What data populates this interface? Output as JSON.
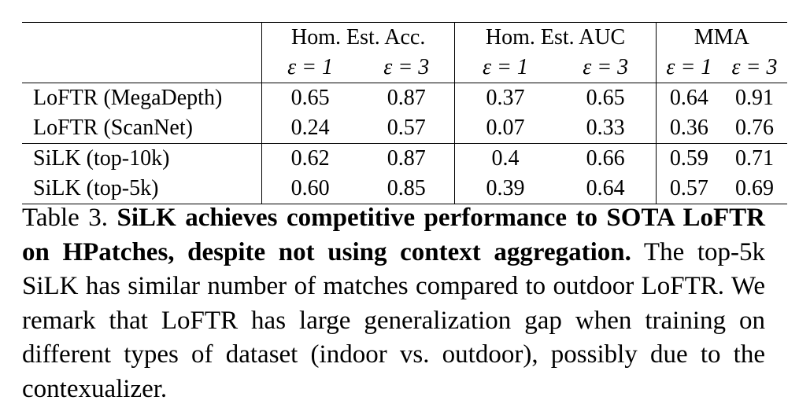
{
  "table": {
    "groups": [
      {
        "label": "Hom. Est. Acc."
      },
      {
        "label": "Hom. Est. AUC"
      },
      {
        "label": "MMA"
      }
    ],
    "subheaders": [
      "ε = 1",
      "ε = 3",
      "ε = 1",
      "ε = 3",
      "ε = 1",
      "ε = 3"
    ],
    "sections": [
      {
        "rows": [
          {
            "method": "LoFTR (MegaDepth)",
            "cells": [
              "0.65",
              "0.87",
              "0.37",
              "0.65",
              "0.64",
              "0.91"
            ],
            "bold": [
              true,
              true,
              false,
              false,
              true,
              true
            ]
          },
          {
            "method": "LoFTR (ScanNet)",
            "cells": [
              "0.24",
              "0.57",
              "0.07",
              "0.33",
              "0.36",
              "0.76"
            ],
            "bold": [
              false,
              false,
              false,
              false,
              false,
              false
            ]
          }
        ]
      },
      {
        "rows": [
          {
            "method": "SiLK (top-10k)",
            "cells": [
              "0.62",
              "0.87",
              "0.4",
              "0.66",
              "0.59",
              "0.71"
            ],
            "bold": [
              false,
              true,
              true,
              true,
              false,
              false
            ]
          },
          {
            "method": "SiLK (top-5k)",
            "cells": [
              "0.60",
              "0.85",
              "0.39",
              "0.64",
              "0.57",
              "0.69"
            ],
            "bold": [
              false,
              false,
              false,
              false,
              false,
              false
            ]
          }
        ]
      }
    ]
  },
  "caption": {
    "label": "Table 3.",
    "emphasis": "SiLK achieves competitive performance to SOTA LoFTR on HPatches, despite not using context aggregation.",
    "body": "The top-5k SiLK has similar number of matches compared to outdoor LoFTR. We remark that LoFTR has large generalization gap when training on different types of dataset (indoor vs.  outdoor), possibly due to the contexualizer."
  }
}
